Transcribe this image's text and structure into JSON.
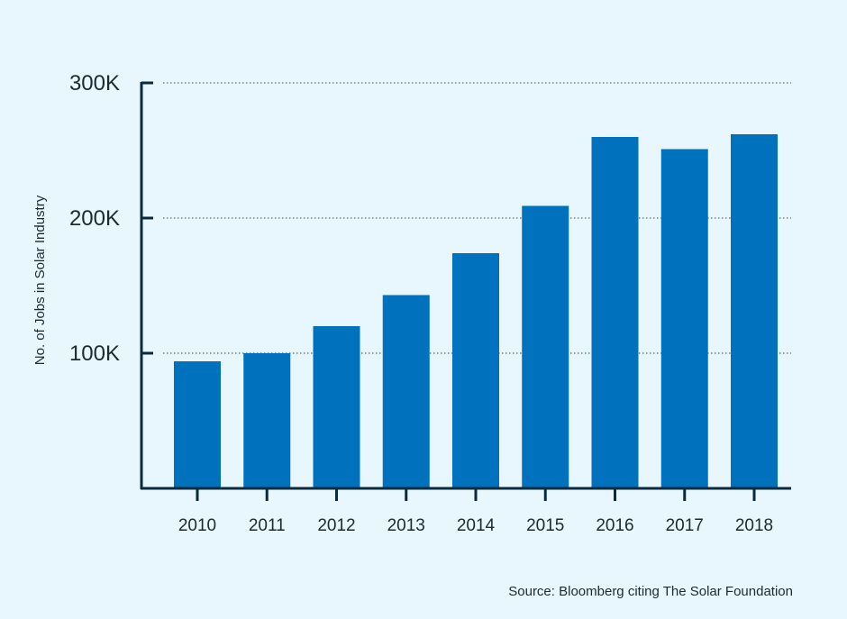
{
  "chart_data": {
    "type": "bar",
    "categories": [
      "2010",
      "2011",
      "2012",
      "2013",
      "2014",
      "2015",
      "2016",
      "2017",
      "2018"
    ],
    "values": [
      94000,
      100000,
      120000,
      143000,
      174000,
      209000,
      260000,
      251000,
      262000
    ],
    "title": "",
    "xlabel": "",
    "ylabel": "No. of Jobs in Solar Industry",
    "ylim": [
      0,
      300000
    ],
    "yticks": [
      100000,
      200000,
      300000
    ],
    "ytick_labels": [
      "100K",
      "200K",
      "300K"
    ],
    "grid": "horizontal-dotted",
    "bar_color": "#0071bc",
    "axis_color": "#0b2a3d",
    "source": "Source: Bloomberg citing The Solar Foundation"
  }
}
